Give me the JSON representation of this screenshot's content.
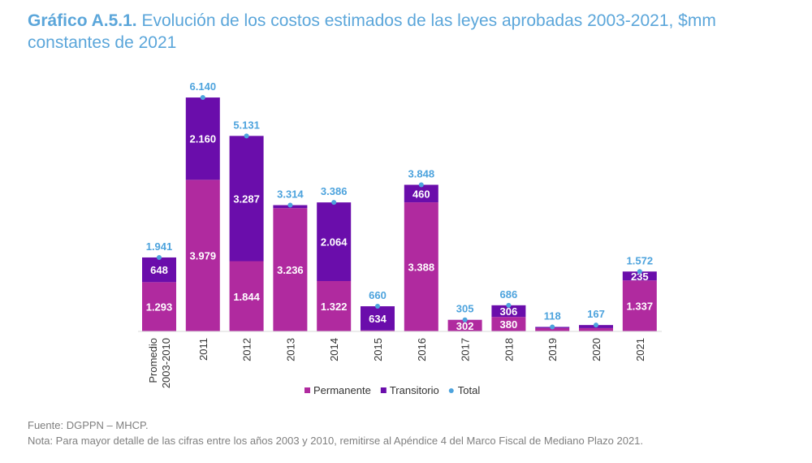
{
  "title": {
    "bold": "Gráfico A.5.1.",
    "rest": " Evolución de los costos estimados de las leyes aprobadas 2003-2021, $mm constantes de 2021"
  },
  "chart_data": {
    "type": "bar",
    "stacked": true,
    "categories": [
      [
        "Promedio",
        "2003-2010"
      ],
      [
        "2011"
      ],
      [
        "2012"
      ],
      [
        "2013"
      ],
      [
        "2014"
      ],
      [
        "2015"
      ],
      [
        "2016"
      ],
      [
        "2017"
      ],
      [
        "2018"
      ],
      [
        "2019"
      ],
      [
        "2020"
      ],
      [
        "2021"
      ]
    ],
    "series": [
      {
        "name": "Permanente",
        "color": "#b02a9f",
        "values": [
          1293,
          3979,
          1844,
          3236,
          1322,
          26,
          3388,
          302,
          380,
          88,
          87,
          1337
        ],
        "labels": [
          "1.293",
          "3.979",
          "1.844",
          "3.236",
          "1.322",
          "",
          "3.388",
          "302",
          "380",
          "",
          "",
          "1.337"
        ]
      },
      {
        "name": "Transitorio",
        "color": "#6a0dab",
        "values": [
          648,
          2160,
          3287,
          78,
          2064,
          634,
          460,
          3,
          306,
          30,
          80,
          235
        ],
        "labels": [
          "648",
          "2.160",
          "3.287",
          "",
          "2.064",
          "634",
          "460",
          "",
          "306",
          "",
          "",
          "235"
        ]
      },
      {
        "name": "Total",
        "color": "#4da3dd",
        "values": [
          1941,
          6140,
          5131,
          3314,
          3386,
          660,
          3848,
          305,
          686,
          118,
          167,
          1572
        ],
        "labels": [
          "1.941",
          "6.140",
          "5.131",
          "3.314",
          "3.386",
          "660",
          "3.848",
          "305",
          "686",
          "118",
          "167",
          "1.572"
        ]
      }
    ],
    "ylim": [
      0,
      6140
    ],
    "grid": false,
    "legend": "bottom"
  },
  "footer": {
    "source": "Fuente: DGPPN – MHCP.",
    "note": "Nota: Para mayor detalle de las cifras entre los años 2003 y 2010, remitirse al Apéndice 4 del Marco Fiscal de Mediano Plazo 2021."
  }
}
